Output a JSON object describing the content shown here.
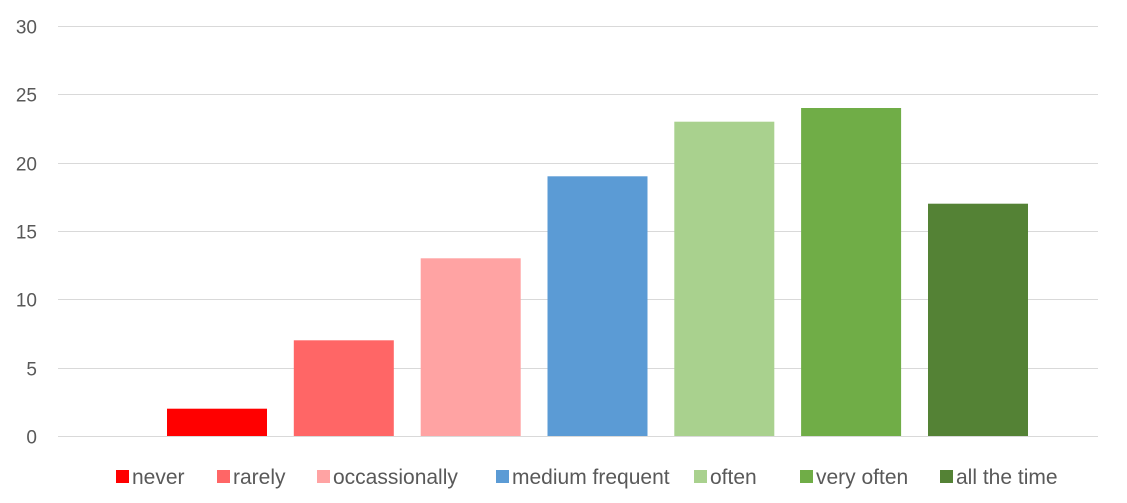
{
  "chart_data": {
    "type": "bar",
    "title": "",
    "xlabel": "",
    "ylabel": "",
    "ylim": [
      0,
      30
    ],
    "yticks": [
      0,
      5,
      10,
      15,
      20,
      25,
      30
    ],
    "grid": true,
    "legend_position": "bottom",
    "series": [
      {
        "name": "never",
        "value": 2,
        "color": "#ff0000"
      },
      {
        "name": "rarely",
        "value": 7,
        "color": "#ff6666"
      },
      {
        "name": "occassionally",
        "value": 13,
        "color": "#ffa3a3"
      },
      {
        "name": "medium frequent",
        "value": 19,
        "color": "#5b9bd5"
      },
      {
        "name": "often",
        "value": 23,
        "color": "#a9d18e"
      },
      {
        "name": "very often",
        "value": 24,
        "color": "#70ad47"
      },
      {
        "name": "all the time",
        "value": 17,
        "color": "#548235"
      }
    ]
  }
}
